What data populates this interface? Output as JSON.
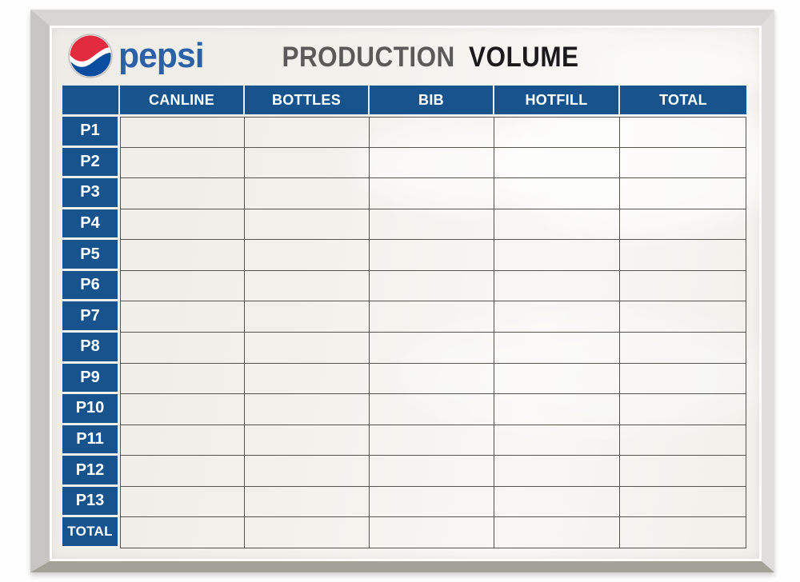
{
  "brand": {
    "wordmark": "pepsi",
    "globe_icon": "pepsi-globe-icon"
  },
  "title": {
    "word1": "PRODUCTION",
    "word2": "VOLUME"
  },
  "table": {
    "corner_label": "",
    "columns": [
      "CANLINE",
      "BOTTLES",
      "BIB",
      "HOTFILL",
      "TOTAL"
    ],
    "rows": [
      "P1",
      "P2",
      "P3",
      "P4",
      "P5",
      "P6",
      "P7",
      "P8",
      "P9",
      "P10",
      "P11",
      "P12",
      "P13",
      "TOTAL"
    ]
  },
  "colors": {
    "header_blue": "#17548e",
    "grid_line": "#56544d",
    "board_white": "#f2f0ea",
    "frame_silver": "#c7c6c2",
    "frame_bottom": "#a3a299",
    "pepsi_red": "#e22b3f",
    "pepsi_blue": "#0a4c9e",
    "wordmark_blue": "#2b61a8",
    "title_gray": "#5a5a58",
    "title_black": "#1b1b1d"
  }
}
